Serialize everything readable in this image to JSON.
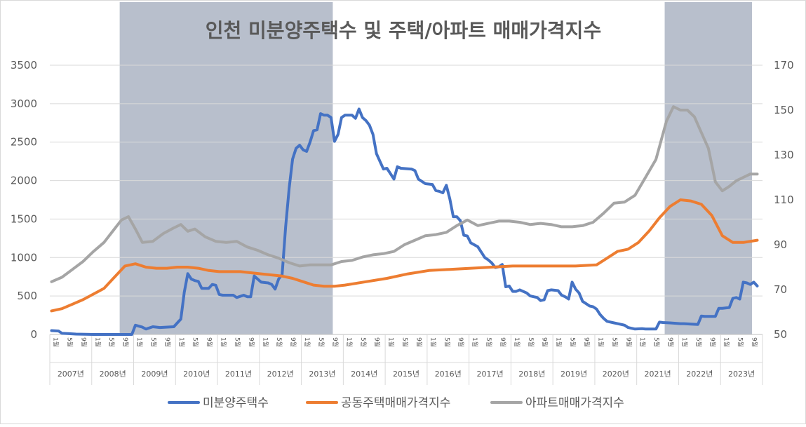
{
  "chart_data": {
    "type": "line",
    "title": "인천 미분양주택수 및 주택/아파트 매매가격지수",
    "left_axis": {
      "ylim": [
        0,
        3500
      ],
      "ticks": [
        "0",
        "500",
        "1000",
        "1500",
        "2000",
        "2500",
        "3000",
        "3500"
      ]
    },
    "right_axis": {
      "ylim": [
        50,
        170
      ],
      "ticks": [
        "50",
        "70",
        "90",
        "110",
        "130",
        "150",
        "170"
      ]
    },
    "x_start": "2007-01",
    "x_end": "2023-09",
    "years": [
      "2007년",
      "2008년",
      "2009년",
      "2010년",
      "2011년",
      "2012년",
      "2013년",
      "2014년",
      "2015년",
      "2016년",
      "2017년",
      "2018년",
      "2019년",
      "2020년",
      "2021년",
      "2022년",
      "2023년"
    ],
    "month_labels": [
      "1월",
      "5월",
      "9월"
    ],
    "shaded_periods": [
      {
        "start": "2008-09",
        "end": "2013-09"
      },
      {
        "start": "2021-09",
        "end": "2023-09"
      }
    ],
    "legend_position": "bottom",
    "series": [
      {
        "name": "미분양주택수",
        "axis": "left",
        "color": "#4472C4",
        "points": [
          [
            "2007-01",
            50
          ],
          [
            "2007-03",
            45
          ],
          [
            "2007-04",
            15
          ],
          [
            "2007-06",
            10
          ],
          [
            "2007-08",
            5
          ],
          [
            "2008-01",
            0
          ],
          [
            "2008-12",
            0
          ],
          [
            "2009-01",
            120
          ],
          [
            "2009-03",
            95
          ],
          [
            "2009-04",
            70
          ],
          [
            "2009-06",
            100
          ],
          [
            "2009-08",
            90
          ],
          [
            "2009-12",
            100
          ],
          [
            "2010-01",
            150
          ],
          [
            "2010-02",
            200
          ],
          [
            "2010-03",
            550
          ],
          [
            "2010-04",
            790
          ],
          [
            "2010-05",
            720
          ],
          [
            "2010-06",
            700
          ],
          [
            "2010-07",
            690
          ],
          [
            "2010-08",
            600
          ],
          [
            "2010-10",
            600
          ],
          [
            "2010-11",
            650
          ],
          [
            "2010-12",
            640
          ],
          [
            "2011-01",
            520
          ],
          [
            "2011-02",
            510
          ],
          [
            "2011-05",
            510
          ],
          [
            "2011-06",
            480
          ],
          [
            "2011-08",
            510
          ],
          [
            "2011-09",
            490
          ],
          [
            "2011-10",
            490
          ],
          [
            "2011-11",
            760
          ],
          [
            "2011-12",
            720
          ],
          [
            "2012-01",
            680
          ],
          [
            "2012-03",
            670
          ],
          [
            "2012-04",
            650
          ],
          [
            "2012-05",
            590
          ],
          [
            "2012-06",
            720
          ],
          [
            "2012-07",
            780
          ],
          [
            "2012-08",
            1400
          ],
          [
            "2012-09",
            1900
          ],
          [
            "2012-10",
            2280
          ],
          [
            "2012-11",
            2420
          ],
          [
            "2012-12",
            2460
          ],
          [
            "2013-01",
            2400
          ],
          [
            "2013-02",
            2380
          ],
          [
            "2013-03",
            2500
          ],
          [
            "2013-04",
            2650
          ],
          [
            "2013-05",
            2660
          ],
          [
            "2013-06",
            2870
          ],
          [
            "2013-07",
            2850
          ],
          [
            "2013-08",
            2850
          ],
          [
            "2013-09",
            2820
          ],
          [
            "2013-10",
            2510
          ],
          [
            "2013-11",
            2600
          ],
          [
            "2013-12",
            2820
          ],
          [
            "2014-01",
            2850
          ],
          [
            "2014-03",
            2850
          ],
          [
            "2014-04",
            2810
          ],
          [
            "2014-05",
            2930
          ],
          [
            "2014-06",
            2820
          ],
          [
            "2014-07",
            2780
          ],
          [
            "2014-08",
            2720
          ],
          [
            "2014-09",
            2600
          ],
          [
            "2014-10",
            2350
          ],
          [
            "2014-11",
            2250
          ],
          [
            "2014-12",
            2150
          ],
          [
            "2015-01",
            2160
          ],
          [
            "2015-02",
            2090
          ],
          [
            "2015-03",
            2020
          ],
          [
            "2015-04",
            2180
          ],
          [
            "2015-05",
            2160
          ],
          [
            "2015-08",
            2150
          ],
          [
            "2015-09",
            2130
          ],
          [
            "2015-10",
            2020
          ],
          [
            "2015-12",
            1960
          ],
          [
            "2016-02",
            1950
          ],
          [
            "2016-03",
            1870
          ],
          [
            "2016-04",
            1860
          ],
          [
            "2016-05",
            1840
          ],
          [
            "2016-06",
            1940
          ],
          [
            "2016-07",
            1760
          ],
          [
            "2016-08",
            1530
          ],
          [
            "2016-09",
            1530
          ],
          [
            "2016-10",
            1480
          ],
          [
            "2016-11",
            1290
          ],
          [
            "2016-12",
            1280
          ],
          [
            "2017-01",
            1190
          ],
          [
            "2017-03",
            1140
          ],
          [
            "2017-05",
            1000
          ],
          [
            "2017-06",
            970
          ],
          [
            "2017-07",
            930
          ],
          [
            "2017-08",
            870
          ],
          [
            "2017-09",
            880
          ],
          [
            "2017-10",
            910
          ],
          [
            "2017-11",
            620
          ],
          [
            "2017-12",
            630
          ],
          [
            "2018-01",
            560
          ],
          [
            "2018-02",
            560
          ],
          [
            "2018-03",
            580
          ],
          [
            "2018-05",
            540
          ],
          [
            "2018-06",
            500
          ],
          [
            "2018-08",
            480
          ],
          [
            "2018-09",
            440
          ],
          [
            "2018-10",
            450
          ],
          [
            "2018-11",
            570
          ],
          [
            "2018-12",
            580
          ],
          [
            "2019-02",
            570
          ],
          [
            "2019-03",
            510
          ],
          [
            "2019-04",
            490
          ],
          [
            "2019-05",
            460
          ],
          [
            "2019-06",
            680
          ],
          [
            "2019-07",
            590
          ],
          [
            "2019-08",
            540
          ],
          [
            "2019-09",
            430
          ],
          [
            "2019-10",
            400
          ],
          [
            "2019-11",
            370
          ],
          [
            "2019-12",
            360
          ],
          [
            "2020-01",
            330
          ],
          [
            "2020-02",
            260
          ],
          [
            "2020-03",
            210
          ],
          [
            "2020-04",
            170
          ],
          [
            "2020-06",
            150
          ],
          [
            "2020-07",
            140
          ],
          [
            "2020-09",
            120
          ],
          [
            "2020-10",
            90
          ],
          [
            "2020-12",
            70
          ],
          [
            "2021-02",
            75
          ],
          [
            "2021-03",
            70
          ],
          [
            "2021-06",
            70
          ],
          [
            "2021-07",
            160
          ],
          [
            "2021-08",
            155
          ],
          [
            "2021-10",
            150
          ],
          [
            "2022-01",
            140
          ],
          [
            "2022-02",
            140
          ],
          [
            "2022-04",
            135
          ],
          [
            "2022-06",
            130
          ],
          [
            "2022-07",
            240
          ],
          [
            "2022-08",
            235
          ],
          [
            "2022-11",
            235
          ],
          [
            "2022-12",
            340
          ],
          [
            "2023-01",
            340
          ],
          [
            "2023-03",
            350
          ],
          [
            "2023-04",
            470
          ],
          [
            "2023-05",
            480
          ],
          [
            "2023-06",
            460
          ],
          [
            "2023-07",
            680
          ],
          [
            "2023-08",
            670
          ],
          [
            "2023-09",
            650
          ],
          [
            "2023-10",
            680
          ],
          [
            "2023-11",
            630
          ]
        ]
      },
      {
        "name": "공동주택매매가격지수",
        "axis": "right",
        "color": "#ED7D31",
        "points": [
          [
            "2007-01",
            60.5
          ],
          [
            "2007-04",
            61.5
          ],
          [
            "2007-07",
            63.5
          ],
          [
            "2007-10",
            65.5
          ],
          [
            "2008-01",
            68.0
          ],
          [
            "2008-04",
            70.5
          ],
          [
            "2008-07",
            75.5
          ],
          [
            "2008-10",
            80.5
          ],
          [
            "2009-01",
            81.5
          ],
          [
            "2009-04",
            80.0
          ],
          [
            "2009-07",
            79.5
          ],
          [
            "2009-10",
            79.5
          ],
          [
            "2010-01",
            80.0
          ],
          [
            "2010-04",
            80.0
          ],
          [
            "2010-07",
            79.5
          ],
          [
            "2010-10",
            78.5
          ],
          [
            "2011-01",
            78.0
          ],
          [
            "2011-07",
            78.0
          ],
          [
            "2012-01",
            77.0
          ],
          [
            "2012-07",
            76.0
          ],
          [
            "2012-10",
            75.0
          ],
          [
            "2013-01",
            73.5
          ],
          [
            "2013-04",
            72.0
          ],
          [
            "2013-07",
            71.5
          ],
          [
            "2013-10",
            71.5
          ],
          [
            "2014-01",
            72.0
          ],
          [
            "2014-07",
            73.5
          ],
          [
            "2015-01",
            75.0
          ],
          [
            "2015-07",
            77.0
          ],
          [
            "2016-01",
            78.5
          ],
          [
            "2016-07",
            79.0
          ],
          [
            "2017-01",
            79.5
          ],
          [
            "2017-07",
            80.0
          ],
          [
            "2018-01",
            80.5
          ],
          [
            "2018-07",
            80.5
          ],
          [
            "2019-01",
            80.5
          ],
          [
            "2019-07",
            80.5
          ],
          [
            "2020-01",
            81.0
          ],
          [
            "2020-04",
            84.0
          ],
          [
            "2020-07",
            87.0
          ],
          [
            "2020-10",
            88.0
          ],
          [
            "2021-01",
            91.0
          ],
          [
            "2021-04",
            96.0
          ],
          [
            "2021-07",
            102.0
          ],
          [
            "2021-10",
            107.0
          ],
          [
            "2022-01",
            110.0
          ],
          [
            "2022-04",
            109.5
          ],
          [
            "2022-07",
            108.0
          ],
          [
            "2022-10",
            103.0
          ],
          [
            "2023-01",
            94.0
          ],
          [
            "2023-04",
            91.0
          ],
          [
            "2023-07",
            91.0
          ],
          [
            "2023-11",
            92.0
          ]
        ]
      },
      {
        "name": "아파트매매가격지수",
        "axis": "right",
        "color": "#A5A5A5",
        "points": [
          [
            "2007-01",
            73.5
          ],
          [
            "2007-04",
            75.5
          ],
          [
            "2007-07",
            79.0
          ],
          [
            "2007-10",
            82.5
          ],
          [
            "2008-01",
            87.0
          ],
          [
            "2008-04",
            91.0
          ],
          [
            "2008-07",
            97.0
          ],
          [
            "2008-09",
            101.0
          ],
          [
            "2008-11",
            102.5
          ],
          [
            "2009-01",
            97.0
          ],
          [
            "2009-03",
            91.0
          ],
          [
            "2009-06",
            91.5
          ],
          [
            "2009-09",
            95.0
          ],
          [
            "2009-12",
            97.5
          ],
          [
            "2010-02",
            99.0
          ],
          [
            "2010-04",
            96.0
          ],
          [
            "2010-06",
            97.0
          ],
          [
            "2010-09",
            93.5
          ],
          [
            "2010-12",
            91.5
          ],
          [
            "2011-03",
            91.0
          ],
          [
            "2011-06",
            91.5
          ],
          [
            "2011-09",
            89.0
          ],
          [
            "2011-12",
            87.5
          ],
          [
            "2012-03",
            85.5
          ],
          [
            "2012-06",
            84.0
          ],
          [
            "2012-09",
            82.0
          ],
          [
            "2012-12",
            80.5
          ],
          [
            "2013-03",
            81.0
          ],
          [
            "2013-06",
            81.0
          ],
          [
            "2013-09",
            81.0
          ],
          [
            "2013-12",
            82.5
          ],
          [
            "2014-03",
            83.0
          ],
          [
            "2014-06",
            84.5
          ],
          [
            "2014-09",
            85.5
          ],
          [
            "2014-12",
            86.0
          ],
          [
            "2015-03",
            87.0
          ],
          [
            "2015-06",
            90.0
          ],
          [
            "2015-09",
            92.0
          ],
          [
            "2015-12",
            94.0
          ],
          [
            "2016-03",
            94.5
          ],
          [
            "2016-06",
            95.5
          ],
          [
            "2016-09",
            98.5
          ],
          [
            "2016-12",
            101.0
          ],
          [
            "2017-03",
            98.5
          ],
          [
            "2017-06",
            99.5
          ],
          [
            "2017-09",
            100.5
          ],
          [
            "2017-12",
            100.5
          ],
          [
            "2018-03",
            100.0
          ],
          [
            "2018-06",
            99.0
          ],
          [
            "2018-09",
            99.5
          ],
          [
            "2018-12",
            99.0
          ],
          [
            "2019-03",
            98.0
          ],
          [
            "2019-06",
            98.0
          ],
          [
            "2019-09",
            98.5
          ],
          [
            "2019-12",
            100.0
          ],
          [
            "2020-03",
            104.0
          ],
          [
            "2020-06",
            108.5
          ],
          [
            "2020-09",
            109.0
          ],
          [
            "2020-12",
            112.0
          ],
          [
            "2021-03",
            120.0
          ],
          [
            "2021-06",
            128.0
          ],
          [
            "2021-09",
            145.0
          ],
          [
            "2021-11",
            151.5
          ],
          [
            "2022-01",
            150.0
          ],
          [
            "2022-03",
            150.0
          ],
          [
            "2022-05",
            147.0
          ],
          [
            "2022-07",
            140.0
          ],
          [
            "2022-09",
            133.0
          ],
          [
            "2022-11",
            118.0
          ],
          [
            "2023-01",
            114.0
          ],
          [
            "2023-03",
            116.0
          ],
          [
            "2023-05",
            118.5
          ],
          [
            "2023-07",
            120.0
          ],
          [
            "2023-09",
            121.5
          ],
          [
            "2023-11",
            121.5
          ]
        ]
      }
    ]
  }
}
